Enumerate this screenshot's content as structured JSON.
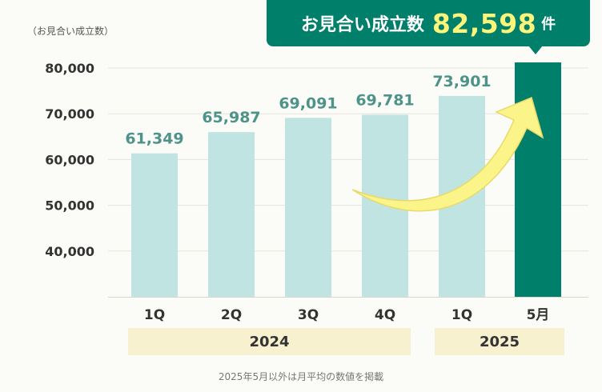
{
  "callout": {
    "prefix": "お見合い成立数",
    "value": "82,598",
    "suffix": "件"
  },
  "footnote": "2025年5月以外は月平均の数値を掲載",
  "year_bands": [
    "2024",
    "2025"
  ],
  "colors": {
    "bar_light": "#bfe4e2",
    "bar_highlight": "#00806a",
    "value_label": "#4e9389",
    "arrow_fill": "#fbf589",
    "arrow_stroke": "#e9d96a"
  },
  "chart_data": {
    "type": "bar",
    "unit_label": "（お見合い成立数）",
    "categories": [
      "1Q",
      "2Q",
      "3Q",
      "4Q",
      "1Q",
      "5月"
    ],
    "values": [
      61349,
      65987,
      69091,
      69781,
      73901,
      82598
    ],
    "value_labels": [
      "61,349",
      "65,987",
      "69,091",
      "69,781",
      "73,901",
      ""
    ],
    "yticks": [
      "40,000",
      "50,000",
      "60,000",
      "70,000",
      "80,000"
    ],
    "ylim": [
      30000,
      80000
    ],
    "highlight_index": 5,
    "grid": true
  }
}
